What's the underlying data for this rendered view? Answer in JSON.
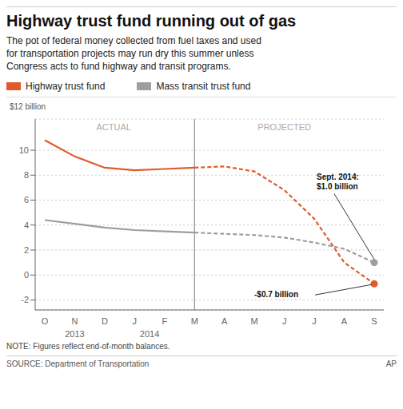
{
  "chart_data": {
    "type": "line",
    "title": "Highway trust fund running out of gas",
    "subtitle": "The pot of federal money collected from fuel taxes and used\nfor transportation projects may run dry this summer unless\nCongress acts to fund highway and transit programs.",
    "ylabel": "$12 billion",
    "categories": [
      "O",
      "N",
      "D",
      "J",
      "F",
      "M",
      "A",
      "M",
      "J",
      "J",
      "A",
      "S"
    ],
    "period_labels": [
      "ACTUAL",
      "PROJECTED"
    ],
    "year_labels": [
      "2013",
      "2014"
    ],
    "note": "NOTE: Figures reflect end-of-month balances.",
    "source": "SOURCE: Department of Transportation",
    "credit": "AP",
    "ylim": [
      -2.8,
      12.5
    ],
    "yticks": [
      -2,
      0,
      2,
      4,
      6,
      8,
      10
    ],
    "grid": true,
    "legend": "top",
    "series": [
      {
        "name": "Highway trust fund",
        "color": "#E05A2B",
        "line_style": "solid",
        "values": [
          10.8,
          9.5,
          8.6,
          8.4,
          8.5,
          8.6,
          null,
          null,
          null,
          null,
          null,
          null
        ]
      },
      {
        "name": "Highway trust fund",
        "color": "#E05A2B",
        "line_style": "dashed",
        "marker": "end",
        "annotation": "-$0.7 billion",
        "values": [
          null,
          null,
          null,
          null,
          null,
          8.6,
          8.7,
          8.3,
          6.8,
          4.5,
          1.0,
          -0.7
        ]
      },
      {
        "name": "Mass transit trust fund",
        "color": "#9E9E9E",
        "line_style": "solid",
        "values": [
          4.4,
          4.1,
          3.8,
          3.6,
          3.5,
          3.4,
          null,
          null,
          null,
          null,
          null,
          null
        ]
      },
      {
        "name": "Mass transit trust fund",
        "color": "#9E9E9E",
        "line_style": "dashed",
        "marker": "end",
        "annotation": "Sept. 2014:\n$1.0 billion",
        "values": [
          null,
          null,
          null,
          null,
          null,
          3.4,
          3.3,
          3.2,
          3.0,
          2.6,
          2.1,
          1.0
        ]
      }
    ]
  }
}
